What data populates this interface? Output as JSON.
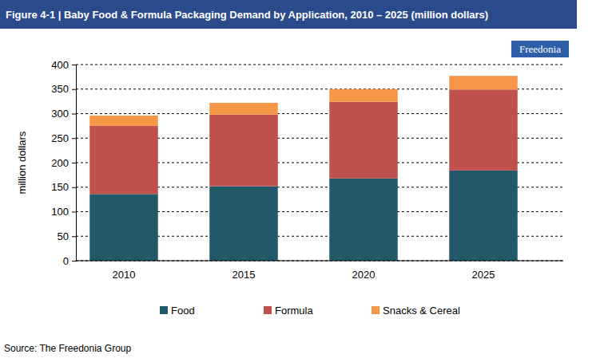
{
  "chart_data": {
    "type": "bar",
    "title": "Figure 4-1 | Baby Food & Formula Packaging Demand by Application, 2010 – 2025 (million dollars)",
    "logo": "Freedonia",
    "source": "Source: The Freedonia Group",
    "y_label": "million dollars",
    "categories": [
      "2010",
      "2015",
      "2020",
      "2025"
    ],
    "series": [
      {
        "name": "Food",
        "color": "#215968",
        "values": [
          136,
          152,
          168,
          184
        ]
      },
      {
        "name": "Formula",
        "color": "#c0504d",
        "values": [
          139,
          146,
          156,
          165
        ]
      },
      {
        "name": "Snacks & Cereal",
        "color": "#f79646",
        "values": [
          21,
          24,
          26,
          28
        ]
      }
    ],
    "ylim": [
      0,
      400
    ],
    "yticks": [
      0,
      50,
      100,
      150,
      200,
      250,
      300,
      350,
      400
    ],
    "stacked": true,
    "grid": true,
    "legend": "bottom"
  }
}
